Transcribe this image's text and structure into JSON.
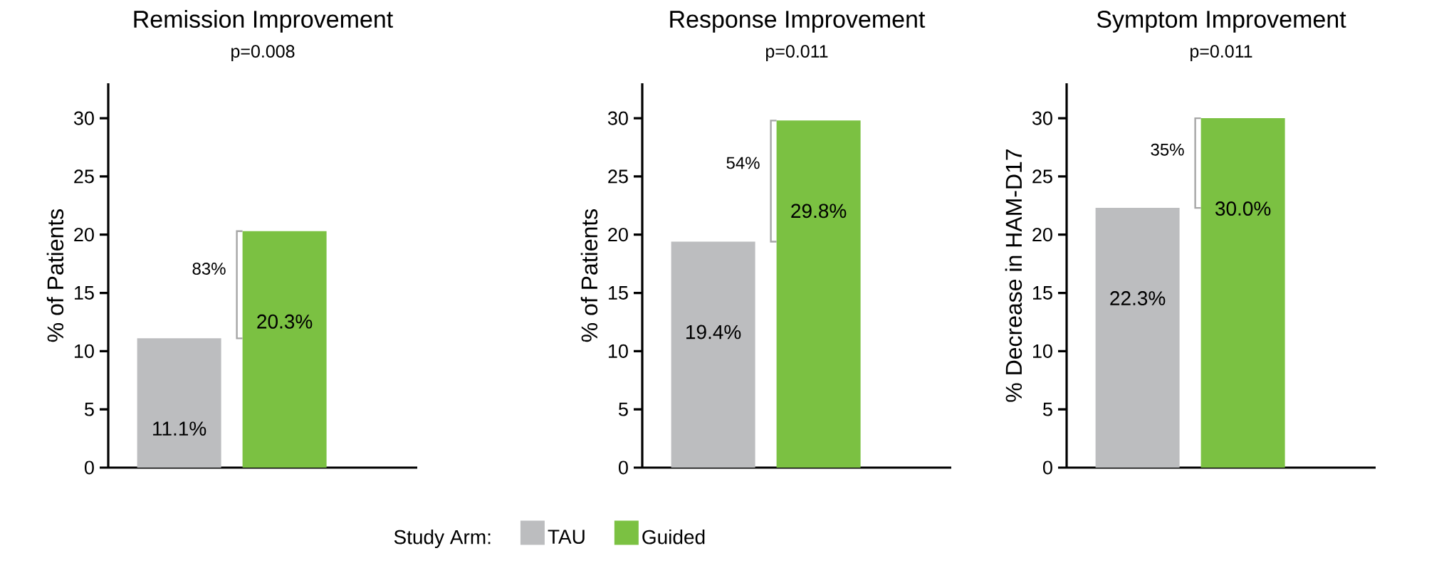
{
  "chart_data": [
    {
      "type": "bar",
      "title": "Remission Improvement",
      "subtitle": "p=0.008",
      "ylabel": "% of Patients",
      "categories": [
        null
      ],
      "ylim": [
        0,
        33
      ],
      "yticks": [
        0,
        5,
        10,
        15,
        20,
        25,
        30
      ],
      "annotations": [
        "83%"
      ],
      "series": [
        {
          "color": "#bcbdbf",
          "values": [
            11.1
          ],
          "value_labels": [
            "11.1%"
          ]
        },
        {
          "color": "#7bc142",
          "values": [
            20.3
          ],
          "value_labels": [
            "20.3%"
          ]
        }
      ]
    },
    {
      "type": "bar",
      "title": "Response Improvement",
      "subtitle": "p=0.011",
      "ylabel": "% of Patients",
      "categories": [
        null
      ],
      "ylim": [
        0,
        33
      ],
      "yticks": [
        0,
        5,
        10,
        15,
        20,
        25,
        30
      ],
      "annotations": [
        "54%"
      ],
      "legend": "bottom",
      "legend_title": "Study Arm:",
      "series": [
        {
          "name": "TAU",
          "color": "#bcbdbf",
          "values": [
            19.4
          ],
          "value_labels": [
            "19.4%"
          ]
        },
        {
          "name": "Guided",
          "color": "#7bc142",
          "values": [
            29.8
          ],
          "value_labels": [
            "29.8%"
          ]
        }
      ]
    },
    {
      "type": "bar",
      "title": "Symptom Improvement",
      "subtitle": "p=0.011",
      "ylabel": "% Decrease in HAM-D17",
      "categories": [
        null
      ],
      "ylim": [
        0,
        33
      ],
      "yticks": [
        0,
        5,
        10,
        15,
        20,
        25,
        30
      ],
      "annotations": [
        "35%"
      ],
      "series": [
        {
          "color": "#bcbdbf",
          "values": [
            22.3
          ],
          "value_labels": [
            "22.3%"
          ]
        },
        {
          "color": "#7bc142",
          "values": [
            30.0
          ],
          "value_labels": [
            "30.0%"
          ]
        }
      ]
    }
  ]
}
